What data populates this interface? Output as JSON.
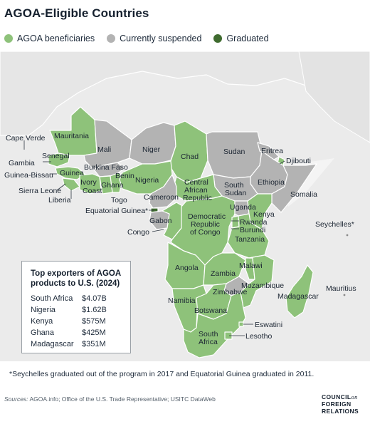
{
  "title": "AGOA-Eligible Countries",
  "legend": [
    {
      "label": "AGOA beneficiaries",
      "color": "#8ec27a"
    },
    {
      "label": "Currently suspended",
      "color": "#b3b3b3"
    },
    {
      "label": "Graduated",
      "color": "#3f6b2f"
    }
  ],
  "colors": {
    "beneficiary": "#8ec27a",
    "suspended": "#b3b3b3",
    "graduated": "#3f6b2f",
    "background": "#ebebeb"
  },
  "map_labels": {
    "cape_verde": "Cape Verde",
    "mauritania": "Mauritania",
    "senegal": "Senegal",
    "gambia": "Gambia",
    "guinea_bissau": "Guinea-Bissau",
    "guinea": "Guinea",
    "sierra_leone": "Sierra Leone",
    "liberia": "Liberia",
    "mali": "Mali",
    "niger": "Niger",
    "burkina_faso": "Burkina Faso",
    "ivory": "Ivory",
    "coast": "Coast",
    "ghana": "Ghana",
    "benin": "Benin",
    "togo": "Togo",
    "nigeria": "Nigeria",
    "chad": "Chad",
    "sudan": "Sudan",
    "eritrea": "Eritrea",
    "djibouti": "Djibouti",
    "ethiopia": "Ethiopia",
    "somalia": "Somalia",
    "central": "Central",
    "african": "African",
    "republic": "Republic",
    "south": "South",
    "sudan2": "Sudan",
    "cameroon": "Cameroon",
    "equatorial_guinea": "Equatorial Guinea*",
    "gabon": "Gabon",
    "congo": "Congo",
    "drc1": "Democratic",
    "drc2": "Republic",
    "drc3": "of Congo",
    "uganda": "Uganda",
    "kenya": "Kenya",
    "rwanda": "Rwanda",
    "burundi": "Burundi",
    "tanzania": "Tanzania",
    "seychelles": "Seychelles*",
    "angola": "Angola",
    "zambia": "Zambia",
    "malawi": "Malawi",
    "mozambique": "Mozambique",
    "zimbabwe": "Zimbabwe",
    "madagascar": "Madagascar",
    "mauritius": "Mauritius",
    "namibia": "Namibia",
    "botswana": "Botswana",
    "eswatini": "Eswatini",
    "lesotho": "Lesotho",
    "south_africa1": "South",
    "south_africa2": "Africa"
  },
  "table": {
    "title": "Top exporters of AGOA products to U.S. (2024)",
    "rows": [
      {
        "country": "South Africa",
        "value": "$4.07B"
      },
      {
        "country": "Nigeria",
        "value": "$1.62B"
      },
      {
        "country": "Kenya",
        "value": "$575M"
      },
      {
        "country": "Ghana",
        "value": "$425M"
      },
      {
        "country": "Madagascar",
        "value": "$351M"
      }
    ]
  },
  "footnote": "*Seychelles graduated out of the program in 2017 and Equatorial Guinea graduated in 2011.",
  "sources": {
    "prefix": "Sources:",
    "text": " AGOA.info; Office of the U.S. Trade Representative; USITC DataWeb"
  },
  "logo": {
    "line1": "COUNCIL",
    "on": "on",
    "line2": "FOREIGN",
    "line3": "RELATIONS"
  }
}
